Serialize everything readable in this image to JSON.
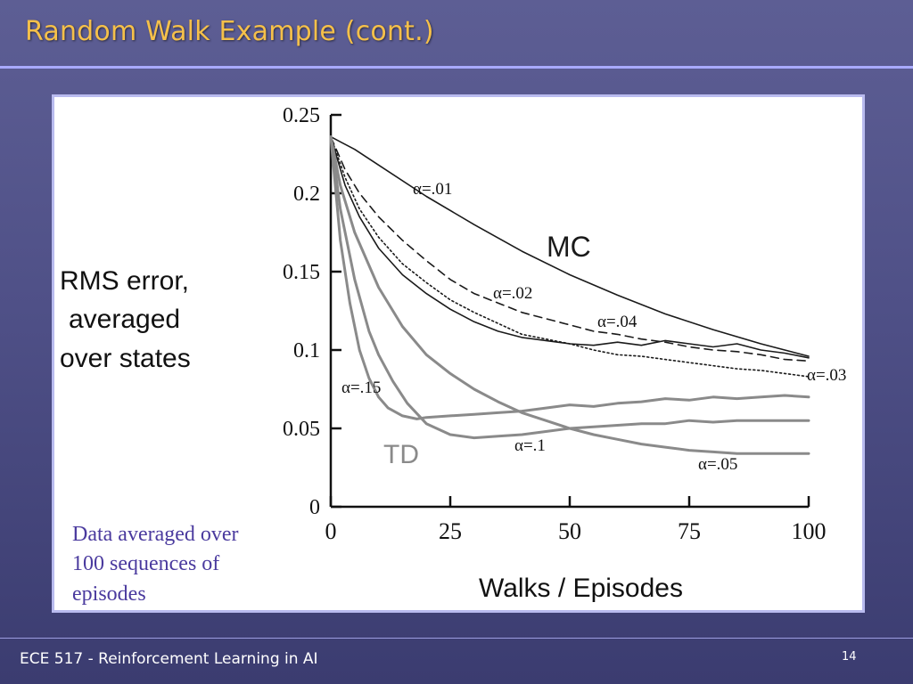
{
  "slide": {
    "title": "Random Walk Example (cont.)",
    "footer": "ECE 517 - Reinforcement Learning in AI",
    "page_number": "14"
  },
  "figure": {
    "ylabel_lines": [
      "RMS error,",
      "averaged",
      "over states"
    ],
    "xlabel": "Walks / Episodes",
    "note_lines": [
      "Data averaged over",
      "100 sequences of",
      "episodes"
    ],
    "group_labels": {
      "mc": "MC",
      "td": "TD"
    },
    "colors": {
      "mc": "#1a1a1a",
      "td": "#8a8a8a",
      "note": "#4a3a9e"
    }
  },
  "chart_data": {
    "type": "line",
    "xlabel": "Walks / Episodes",
    "ylabel": "RMS error, averaged over states",
    "xlim": [
      0,
      100
    ],
    "ylim": [
      0,
      0.25
    ],
    "xticks": [
      0,
      25,
      50,
      75,
      100
    ],
    "xtick_labels": [
      "0",
      "25",
      "50",
      "75",
      "100"
    ],
    "yticks": [
      0,
      0.05,
      0.1,
      0.15,
      0.2,
      0.25
    ],
    "ytick_labels": [
      "0",
      "0.05",
      "0.1",
      "0.15",
      "0.2",
      "0.25"
    ],
    "series": [
      {
        "name": "α=.01",
        "group": "MC",
        "style": "solid",
        "x": [
          0,
          5,
          10,
          20,
          30,
          40,
          50,
          60,
          70,
          80,
          90,
          100
        ],
        "y": [
          0.236,
          0.228,
          0.218,
          0.198,
          0.18,
          0.163,
          0.148,
          0.135,
          0.123,
          0.113,
          0.104,
          0.096
        ]
      },
      {
        "name": "α=.02",
        "group": "MC",
        "style": "dashed",
        "x": [
          0,
          3,
          6,
          10,
          15,
          20,
          25,
          30,
          35,
          40,
          45,
          50,
          55,
          60,
          65,
          70,
          75,
          80,
          85,
          90,
          95,
          100
        ],
        "y": [
          0.236,
          0.215,
          0.2,
          0.185,
          0.17,
          0.157,
          0.145,
          0.136,
          0.13,
          0.124,
          0.12,
          0.116,
          0.112,
          0.11,
          0.107,
          0.105,
          0.102,
          0.1,
          0.099,
          0.097,
          0.094,
          0.093
        ]
      },
      {
        "name": "α=.03",
        "group": "MC",
        "style": "dotted",
        "x": [
          0,
          3,
          6,
          10,
          15,
          20,
          25,
          30,
          35,
          40,
          45,
          50,
          55,
          60,
          65,
          70,
          75,
          80,
          85,
          90,
          95,
          100
        ],
        "y": [
          0.236,
          0.21,
          0.19,
          0.172,
          0.155,
          0.143,
          0.132,
          0.124,
          0.117,
          0.11,
          0.107,
          0.104,
          0.1,
          0.097,
          0.096,
          0.094,
          0.092,
          0.09,
          0.088,
          0.087,
          0.085,
          0.083
        ]
      },
      {
        "name": "α=.04",
        "group": "MC",
        "style": "solid",
        "x": [
          0,
          3,
          6,
          10,
          15,
          20,
          25,
          30,
          35,
          40,
          45,
          50,
          55,
          60,
          65,
          70,
          75,
          80,
          85,
          90,
          95,
          100
        ],
        "y": [
          0.236,
          0.205,
          0.185,
          0.165,
          0.148,
          0.136,
          0.126,
          0.118,
          0.112,
          0.108,
          0.106,
          0.104,
          0.103,
          0.105,
          0.103,
          0.106,
          0.104,
          0.102,
          0.104,
          0.1,
          0.098,
          0.095
        ]
      },
      {
        "name": "α=.05",
        "group": "TD",
        "style": "solid",
        "x": [
          0,
          2,
          5,
          10,
          15,
          20,
          25,
          30,
          35,
          40,
          45,
          50,
          55,
          60,
          65,
          70,
          75,
          80,
          85,
          90,
          95,
          100
        ],
        "y": [
          0.236,
          0.205,
          0.175,
          0.14,
          0.115,
          0.097,
          0.085,
          0.075,
          0.067,
          0.06,
          0.055,
          0.05,
          0.046,
          0.043,
          0.04,
          0.038,
          0.036,
          0.035,
          0.034,
          0.034,
          0.034,
          0.034
        ]
      },
      {
        "name": "α=.1",
        "group": "TD",
        "style": "solid",
        "x": [
          0,
          2,
          5,
          8,
          10,
          13,
          16,
          20,
          25,
          30,
          35,
          40,
          45,
          50,
          55,
          60,
          65,
          70,
          75,
          80,
          85,
          90,
          95,
          100
        ],
        "y": [
          0.236,
          0.19,
          0.145,
          0.112,
          0.097,
          0.08,
          0.066,
          0.053,
          0.046,
          0.044,
          0.045,
          0.046,
          0.048,
          0.05,
          0.051,
          0.052,
          0.053,
          0.053,
          0.055,
          0.054,
          0.055,
          0.055,
          0.055,
          0.055
        ]
      },
      {
        "name": "α=.15",
        "group": "TD",
        "style": "solid",
        "x": [
          0,
          2,
          4,
          6,
          8,
          10,
          12,
          15,
          18,
          20,
          25,
          30,
          35,
          40,
          45,
          50,
          55,
          60,
          65,
          70,
          75,
          80,
          85,
          90,
          95,
          100
        ],
        "y": [
          0.236,
          0.17,
          0.13,
          0.1,
          0.082,
          0.07,
          0.063,
          0.058,
          0.056,
          0.057,
          0.058,
          0.059,
          0.06,
          0.061,
          0.063,
          0.065,
          0.064,
          0.066,
          0.067,
          0.069,
          0.068,
          0.07,
          0.069,
          0.07,
          0.071,
          0.07
        ]
      }
    ]
  }
}
